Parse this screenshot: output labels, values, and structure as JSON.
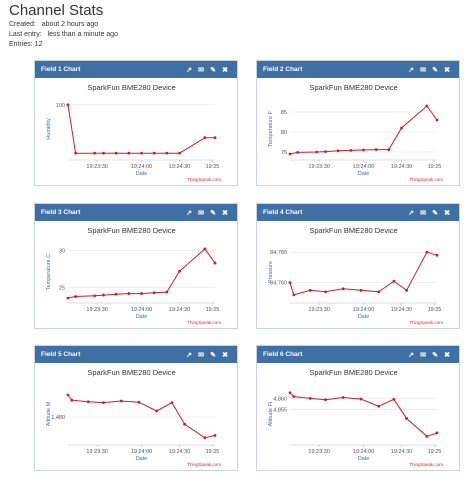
{
  "page": {
    "title": "Channel Stats",
    "created_label": "Created:",
    "created_value": "about 2 hours ago",
    "last_entry_label": "Last entry:",
    "last_entry_value": "less than a minute ago",
    "entries": "Entries: 12"
  },
  "icons": [
    "external-link-icon",
    "comment-icon",
    "edit-icon",
    "close-icon"
  ],
  "colors": {
    "header": "#3f6fa3",
    "line": "#c0232a",
    "brand": "#d02d2d"
  },
  "chart_data": [
    {
      "type": "line",
      "panel": "Field 1 Chart",
      "title": "SparkFun BME280 Device",
      "xlabel": "Date",
      "ylabel": "Humidity",
      "credit": "ThingSpeak.com",
      "xticks": [
        "19:23:30",
        "19:24:00",
        "19:24:30",
        "19:25"
      ],
      "yticks": [
        100
      ],
      "ylim": [
        -10,
        110
      ],
      "x": [
        0,
        0.6,
        2.1,
        2.8,
        3.8,
        4.8,
        5.8,
        6.8,
        7.8,
        8.8,
        10.8,
        11.6
      ],
      "y": [
        100,
        0,
        0,
        0,
        0,
        0,
        0,
        0,
        0,
        0,
        32,
        32
      ]
    },
    {
      "type": "line",
      "panel": "Field 2 Chart",
      "title": "SparkFun BME280 Device",
      "xlabel": "Date",
      "ylabel": "Temperature F",
      "credit": "ThingSpeak.com",
      "xticks": [
        "19:23:30",
        "19:24:00",
        "19:24:30",
        "19:25"
      ],
      "yticks": [
        75,
        80,
        85
      ],
      "ylim": [
        73.5,
        88
      ],
      "x": [
        0,
        0.6,
        2.1,
        2.8,
        3.8,
        4.8,
        5.8,
        6.8,
        7.8,
        8.8,
        10.8,
        11.6
      ],
      "y": [
        74.5,
        74.9,
        75.0,
        75.1,
        75.3,
        75.4,
        75.5,
        75.6,
        75.6,
        81.0,
        86.5,
        83.0
      ]
    },
    {
      "type": "line",
      "panel": "Field 3 Chart",
      "title": "SparkFun BME280 Device",
      "xlabel": "Date",
      "ylabel": "Temperature C",
      "credit": "ThingSpeak.com",
      "xticks": [
        "19:23:30",
        "19:24:00",
        "19:24:30",
        "19:25"
      ],
      "yticks": [
        25,
        30
      ],
      "ylim": [
        23.2,
        31.0
      ],
      "x": [
        0,
        0.6,
        2.1,
        2.8,
        3.8,
        4.8,
        5.8,
        6.8,
        7.8,
        8.8,
        10.8,
        11.6
      ],
      "y": [
        23.6,
        23.8,
        23.9,
        24.0,
        24.1,
        24.2,
        24.2,
        24.3,
        24.4,
        27.2,
        30.2,
        28.3
      ]
    },
    {
      "type": "line",
      "panel": "Field 4 Chart",
      "title": "SparkFun BME280 Device",
      "xlabel": "Date",
      "ylabel": "Pressure",
      "credit": "ThingSpeak.com",
      "xticks": [
        "19:23:30",
        "19:24:00",
        "19:24:30",
        "19:25"
      ],
      "yticks": [
        84760,
        84780
      ],
      "ylim": [
        84748,
        84786
      ],
      "x": [
        0,
        0.3,
        1.6,
        2.8,
        4.2,
        5.6,
        7.0,
        8.2,
        9.2,
        10.8,
        11.6
      ],
      "y": [
        84760,
        84752,
        84755,
        84754,
        84756,
        84755,
        84754,
        84761,
        84755,
        84780,
        84778
      ]
    },
    {
      "type": "line",
      "panel": "Field 5 Chart",
      "title": "SparkFun BME280 Device",
      "xlabel": "Date",
      "ylabel": "Altitude M",
      "credit": "ThingSpeak.com",
      "xticks": [
        "19:23:30",
        "19:24:00",
        "19:24:30",
        "19:25"
      ],
      "yticks": [
        1480
      ],
      "ylim": [
        1473.5,
        1488
      ],
      "x": [
        0,
        0.3,
        1.6,
        2.8,
        4.2,
        5.6,
        7.0,
        8.2,
        9.2,
        10.8,
        11.6
      ],
      "y": [
        1485.5,
        1484.2,
        1483.8,
        1483.6,
        1484.0,
        1483.7,
        1481.5,
        1483.6,
        1478.2,
        1474.8,
        1475.4
      ]
    },
    {
      "type": "line",
      "panel": "Field 6 Chart",
      "title": "SparkFun BME280 Device",
      "xlabel": "Date",
      "ylabel": "Altitude Ft",
      "credit": "ThingSpeak.com",
      "xticks": [
        "19:23:30",
        "19:24:00",
        "19:24:30",
        "19:25"
      ],
      "yticks": [
        4855,
        4860
      ],
      "ylim": [
        4840,
        4866
      ],
      "x": [
        0,
        0.3,
        1.6,
        2.8,
        4.2,
        5.6,
        7.0,
        8.2,
        9.2,
        10.8,
        11.6
      ],
      "y": [
        4862.5,
        4860.8,
        4860.0,
        4859.4,
        4860.4,
        4859.7,
        4856.5,
        4859.6,
        4851.0,
        4843.0,
        4844.5
      ]
    }
  ]
}
